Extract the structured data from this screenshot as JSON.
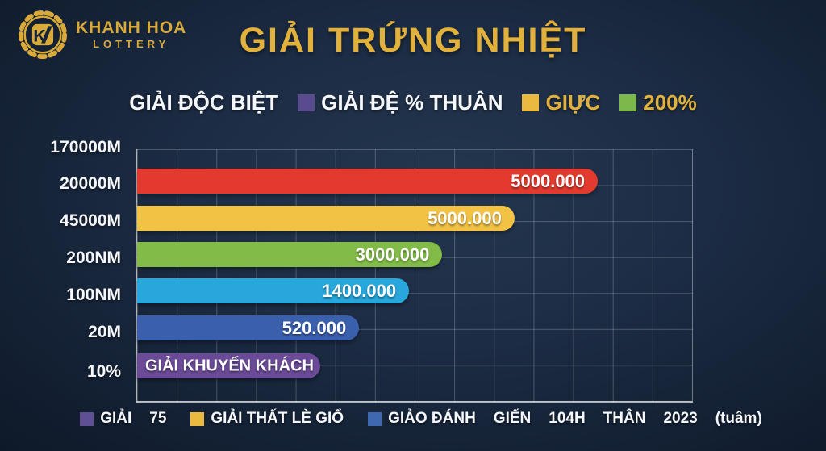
{
  "brand": {
    "name": "KHANH HOA",
    "lottery": "LOTTERY",
    "badge_icon": "gear-badge-monogram",
    "gold": "#d9a93a"
  },
  "title": "GIẢI  TRỨNG NHIỆT",
  "top_legend": {
    "items": [
      {
        "label": "GIẢI ĐỘC BIỆT",
        "swatch": null,
        "text_color": "#f5f7fa"
      },
      {
        "label": "GIẢI ĐỆ % THUÂN",
        "swatch": "#5a4a8e",
        "text_color": "#f5f7fa"
      },
      {
        "label": "GIỰC",
        "swatch": "#eab93f",
        "text_color": "#e2b13c"
      },
      {
        "label": "200%",
        "swatch": "#7cb84b",
        "text_color": "#e2b13c"
      }
    ]
  },
  "chart_data": {
    "type": "bar",
    "orientation": "horizontal",
    "title": "GIẢI  TRỨNG NHIỆT",
    "grid": true,
    "y_tick_labels": [
      "170000M",
      "20000M",
      "45000M",
      "200NM",
      "100NM",
      "20M",
      "10%"
    ],
    "series": [
      {
        "category": "20000M",
        "value_label": "5000.000",
        "value": 5000000,
        "color": "#e23a2e",
        "length_pct": 83,
        "label_style": "right"
      },
      {
        "category": "45000M",
        "value_label": "5000.000",
        "value": 5000000,
        "color": "#f2c245",
        "length_pct": 68,
        "label_style": "right"
      },
      {
        "category": "200NM",
        "value_label": "3000.000",
        "value": 3000000,
        "color": "#83bb49",
        "length_pct": 55,
        "label_style": "right"
      },
      {
        "category": "100NM",
        "value_label": "1400.000",
        "value": 1400000,
        "color": "#27a7dc",
        "length_pct": 49,
        "label_style": "right"
      },
      {
        "category": "20M",
        "value_label": "520.000",
        "value": 520000,
        "color": "#3a5fad",
        "length_pct": 40,
        "label_style": "right"
      },
      {
        "category": "10%",
        "value_label": "GIẢI KHUYẾN KHÁCH",
        "value": null,
        "color": "#6b4b98",
        "length_pct": 33,
        "label_style": "center"
      }
    ]
  },
  "bottom_legend": {
    "items": [
      {
        "swatch": "#5f4f93",
        "parts": [
          "GIẢI",
          "75"
        ]
      },
      {
        "swatch": "#eab93f",
        "parts": [
          "GIẢI THẤT LÈ GIỔ"
        ]
      },
      {
        "swatch": "#3e68b0",
        "parts": [
          "GIẢO ĐÁNH",
          "GIẾN",
          "104H",
          "THÂN",
          "2023",
          "(tuâm)"
        ]
      }
    ]
  }
}
